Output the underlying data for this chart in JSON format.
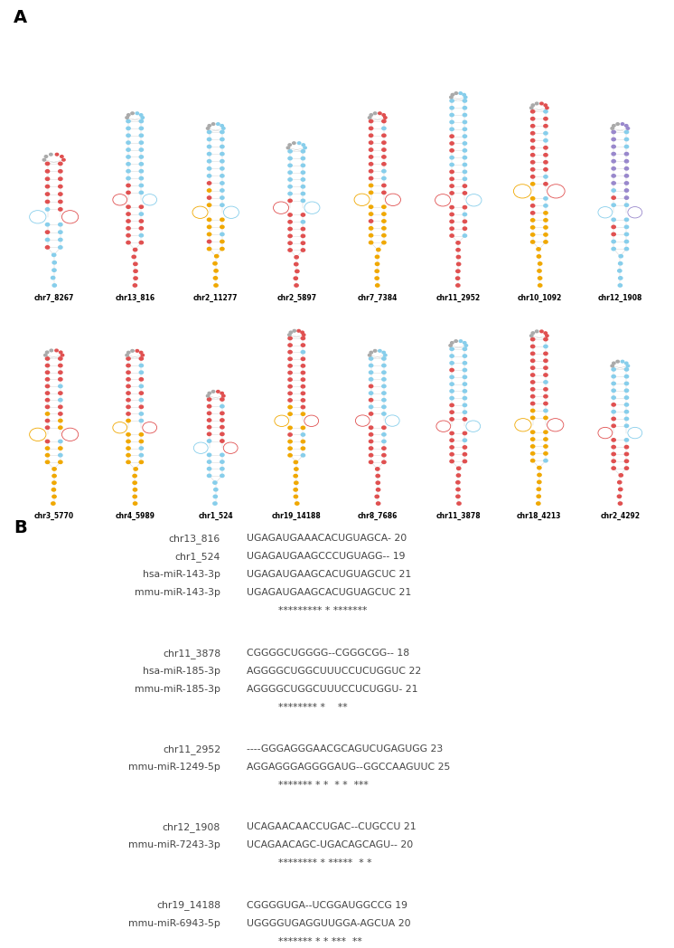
{
  "panel_A_label": "A",
  "panel_B_label": "B",
  "row1_labels": [
    "chr7_8267",
    "chr13_816",
    "chr2_11277",
    "chr2_5897",
    "chr7_7384",
    "chr11_2952",
    "chr10_1092",
    "chr12_1908"
  ],
  "row2_labels": [
    "chr3_5770",
    "chr4_5989",
    "chr1_524",
    "chr19_14188",
    "chr8_7686",
    "chr11_3878",
    "chr18_4213",
    "chr2_4292"
  ],
  "alignment_groups": [
    {
      "lines": [
        {
          "name": "chr13_816",
          "seq": "UGAGAUGAAACACUGUAGCA-",
          "num": "20"
        },
        {
          "name": "chr1_524",
          "seq": "UGAGAUGAAGCCCUGUAGG--",
          "num": "19"
        },
        {
          "name": "hsa-miR-143-3p",
          "seq": "UGAGAUGAAGCACUGUAGCUC",
          "num": "21"
        },
        {
          "name": "mmu-miR-143-3p",
          "seq": "UGAGAUGAAGCACUGUAGCUC",
          "num": "21"
        }
      ],
      "consensus": "          ********* * *******"
    },
    {
      "lines": [
        {
          "name": "chr11_3878",
          "seq": "CGGGGCUGGGG--CGGGCGG--",
          "num": "18"
        },
        {
          "name": "hsa-miR-185-3p",
          "seq": "AGGGGCUGGCUUUCCUCUGGUC",
          "num": "22"
        },
        {
          "name": "mmu-miR-185-3p",
          "seq": "AGGGGCUGGCUUUCCUCUGGU-",
          "num": "21"
        }
      ],
      "consensus": "          ******** *    **"
    },
    {
      "lines": [
        {
          "name": "chr11_2952",
          "seq": "----GGGAGGGAACGCAGUCUGAGUGG",
          "num": "23"
        },
        {
          "name": "mmu-miR-1249-5p",
          "seq": "AGGAGGGAGGGGAUG--GGCCAAGUUC",
          "num": "25"
        }
      ],
      "consensus": "          ******* * *  * *  ***"
    },
    {
      "lines": [
        {
          "name": "chr12_1908",
          "seq": "UCAGAACAACCUGAC--CUGCCU",
          "num": "21"
        },
        {
          "name": "mmu-miR-7243-3p",
          "seq": "UCAGAACAGC-UGACAGCAGU--",
          "num": "20"
        }
      ],
      "consensus": "          ******** * *****  * *"
    },
    {
      "lines": [
        {
          "name": "chr19_14188",
          "seq": "CGGGGUGA--UCGGAUGGCCG",
          "num": "19"
        },
        {
          "name": "mmu-miR-6943-5p",
          "seq": "UGGGGUGAGGUUGGA-AGCUA",
          "num": "20"
        }
      ],
      "consensus": "          ******* * * ***  **"
    }
  ],
  "bg_color": "#ffffff",
  "text_color": "#444444"
}
